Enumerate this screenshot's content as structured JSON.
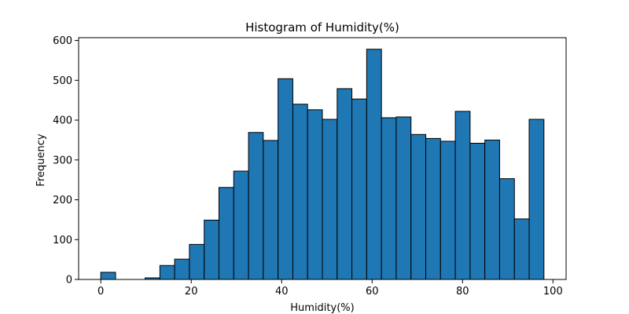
{
  "chart_data": {
    "type": "bar",
    "title": "Histogram of Humidity(%)",
    "xlabel": "Humidity(%)",
    "ylabel": "Frequency",
    "xlim": [
      -4.9,
      102.9
    ],
    "ylim": [
      0,
      607
    ],
    "xticks": [
      0,
      20,
      40,
      60,
      80,
      100
    ],
    "yticks": [
      0,
      100,
      200,
      300,
      400,
      500,
      600
    ],
    "grid": false,
    "bar_color": "#1f77b4",
    "edge_color": "#000000",
    "bins": [
      {
        "x0": 0.0,
        "x1": 3.27,
        "count": 18
      },
      {
        "x0": 3.27,
        "x1": 6.53,
        "count": 0
      },
      {
        "x0": 6.53,
        "x1": 9.8,
        "count": 0
      },
      {
        "x0": 9.8,
        "x1": 13.07,
        "count": 4
      },
      {
        "x0": 13.07,
        "x1": 16.33,
        "count": 35
      },
      {
        "x0": 16.33,
        "x1": 19.6,
        "count": 51
      },
      {
        "x0": 19.6,
        "x1": 22.87,
        "count": 88
      },
      {
        "x0": 22.87,
        "x1": 26.13,
        "count": 149
      },
      {
        "x0": 26.13,
        "x1": 29.4,
        "count": 231
      },
      {
        "x0": 29.4,
        "x1": 32.67,
        "count": 272
      },
      {
        "x0": 32.67,
        "x1": 35.93,
        "count": 369
      },
      {
        "x0": 35.93,
        "x1": 39.2,
        "count": 349
      },
      {
        "x0": 39.2,
        "x1": 42.47,
        "count": 504
      },
      {
        "x0": 42.47,
        "x1": 45.73,
        "count": 440
      },
      {
        "x0": 45.73,
        "x1": 49.0,
        "count": 426
      },
      {
        "x0": 49.0,
        "x1": 52.27,
        "count": 402
      },
      {
        "x0": 52.27,
        "x1": 55.53,
        "count": 479
      },
      {
        "x0": 55.53,
        "x1": 58.8,
        "count": 453
      },
      {
        "x0": 58.8,
        "x1": 62.07,
        "count": 578
      },
      {
        "x0": 62.07,
        "x1": 65.33,
        "count": 406
      },
      {
        "x0": 65.33,
        "x1": 68.6,
        "count": 408
      },
      {
        "x0": 68.6,
        "x1": 71.87,
        "count": 364
      },
      {
        "x0": 71.87,
        "x1": 75.13,
        "count": 354
      },
      {
        "x0": 75.13,
        "x1": 78.4,
        "count": 347
      },
      {
        "x0": 78.4,
        "x1": 81.67,
        "count": 422
      },
      {
        "x0": 81.67,
        "x1": 84.93,
        "count": 342
      },
      {
        "x0": 84.93,
        "x1": 88.2,
        "count": 350
      },
      {
        "x0": 88.2,
        "x1": 91.47,
        "count": 253
      },
      {
        "x0": 91.47,
        "x1": 94.73,
        "count": 152
      },
      {
        "x0": 94.73,
        "x1": 98.0,
        "count": 402
      },
      {
        "x0": 98.0,
        "x1": 101.27,
        "count": 0
      }
    ]
  }
}
